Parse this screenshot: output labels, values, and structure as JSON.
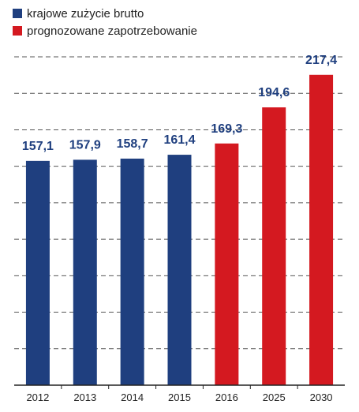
{
  "chart_data": {
    "type": "bar",
    "categories": [
      "2012",
      "2013",
      "2014",
      "2015",
      "2016",
      "2025",
      "2030"
    ],
    "values": [
      157.1,
      157.9,
      158.7,
      161.4,
      169.3,
      194.6,
      217.4
    ],
    "value_labels": [
      "157,1",
      "157,9",
      "158,7",
      "161,4",
      "169,3",
      "194,6",
      "217,4"
    ],
    "series_assignment": [
      "krajowe",
      "krajowe",
      "krajowe",
      "krajowe",
      "prognoza",
      "prognoza",
      "prognoza"
    ],
    "ylim": [
      0,
      230
    ],
    "grid": true,
    "legend": [
      {
        "key": "krajowe",
        "label": "krajowe zużycie brutto",
        "color": "#1f3f7f"
      },
      {
        "key": "prognoza",
        "label": "prognozowane zapotrzebowanie",
        "color": "#d41920"
      }
    ],
    "label_colors": {
      "krajowe": "#1f3f7f",
      "prognoza": "#1f3f7f"
    }
  }
}
